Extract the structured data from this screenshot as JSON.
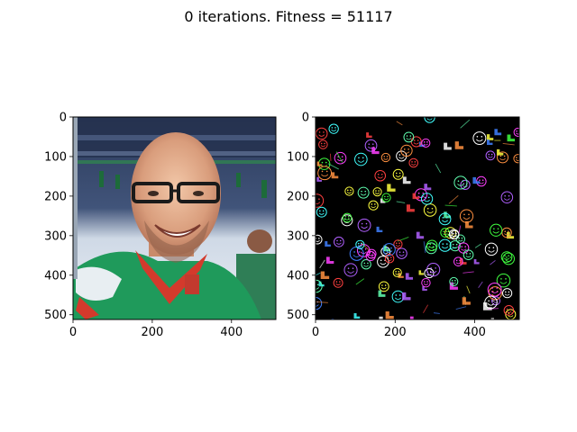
{
  "figure": {
    "title": "0 iterations. Fitness = 51117"
  },
  "chart_data": [
    {
      "type": "image",
      "panel": "left",
      "content": "photo",
      "title": "",
      "xlabel": "",
      "ylabel": "",
      "xlim": [
        0,
        512
      ],
      "ylim": [
        512,
        0
      ],
      "xticks": [
        0,
        200,
        400
      ],
      "yticks": [
        0,
        100,
        200,
        300,
        400,
        500
      ],
      "grid": false
    },
    {
      "type": "image",
      "panel": "right",
      "content": "random emoji/icon sprites on black background",
      "title": "",
      "xlabel": "",
      "ylabel": "",
      "xlim": [
        0,
        512
      ],
      "ylim": [
        512,
        0
      ],
      "xticks": [
        0,
        200,
        400
      ],
      "yticks": [
        0,
        100,
        200,
        300,
        400,
        500
      ],
      "grid": false,
      "background": "#000000",
      "sprite_colors": [
        "#ff4040",
        "#40ff40",
        "#4080ff",
        "#ffff40",
        "#ff40ff",
        "#40ffff",
        "#ff9040",
        "#b060ff",
        "#60ffb0",
        "#ffffff"
      ]
    }
  ]
}
